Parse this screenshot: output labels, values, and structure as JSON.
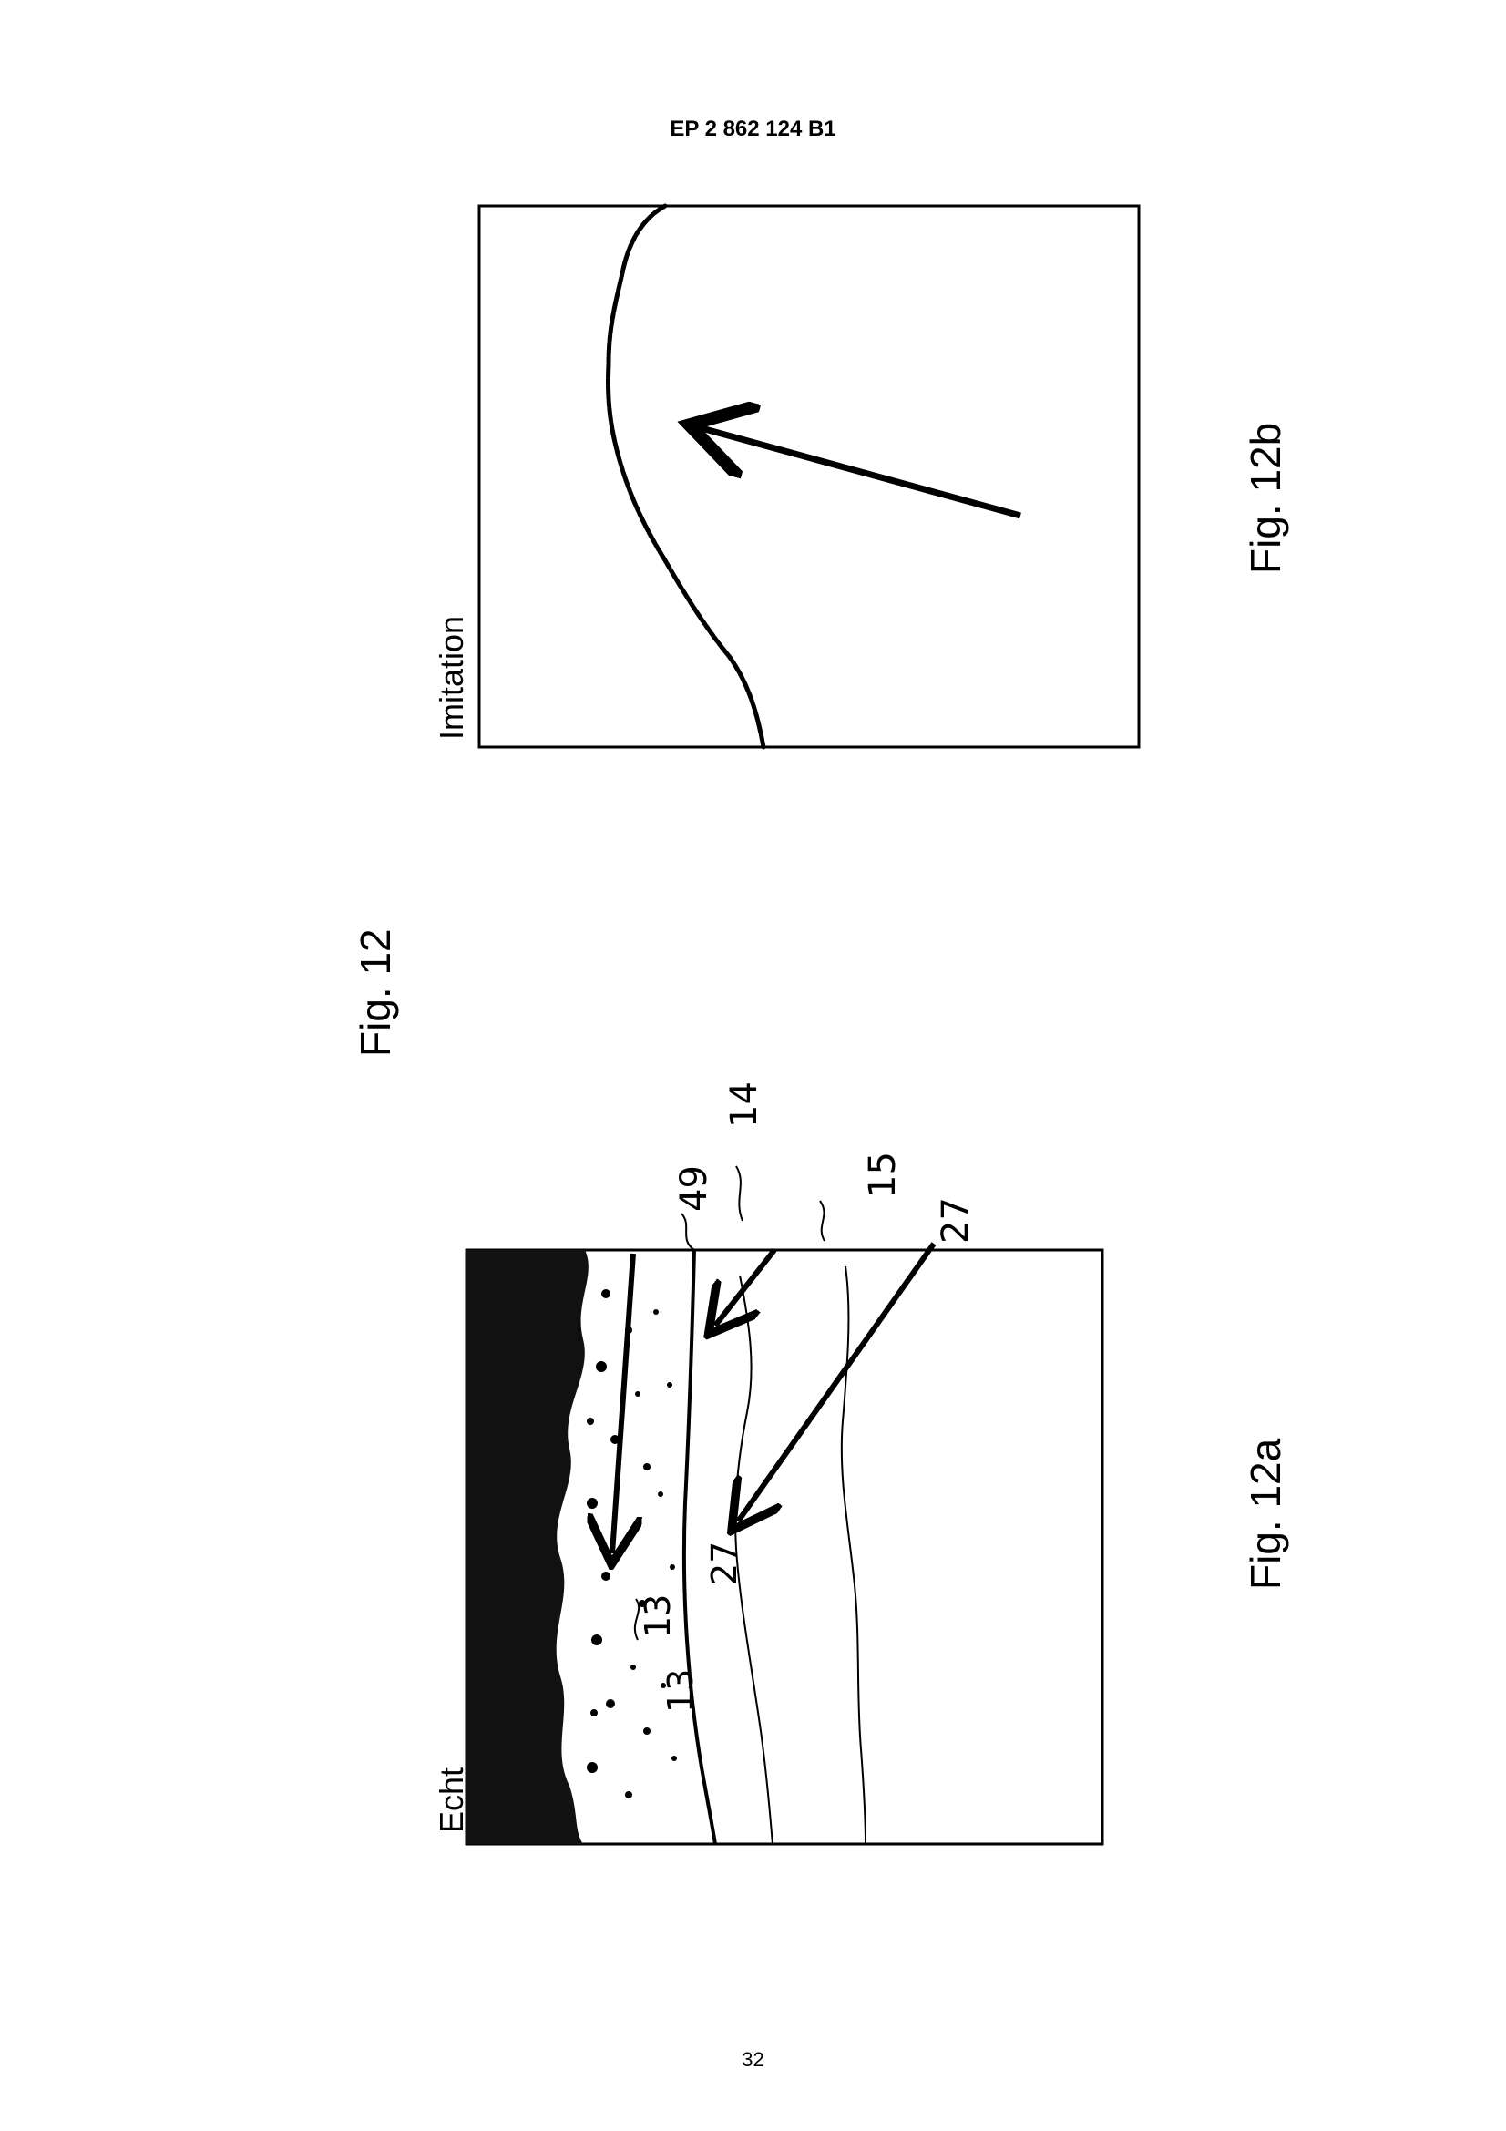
{
  "header": {
    "publication": "EP 2 862 124 B1"
  },
  "figure": {
    "caption_main": "Fig. 12",
    "panel_b": {
      "caption": "Fig. 12b",
      "label": "Imitation"
    },
    "panel_a": {
      "caption": "Fig. 12a",
      "label": "Echt",
      "refs": [
        "49",
        "14",
        "15",
        "27",
        "27",
        "13",
        "13"
      ]
    }
  },
  "footer": {
    "page_number": "32"
  }
}
